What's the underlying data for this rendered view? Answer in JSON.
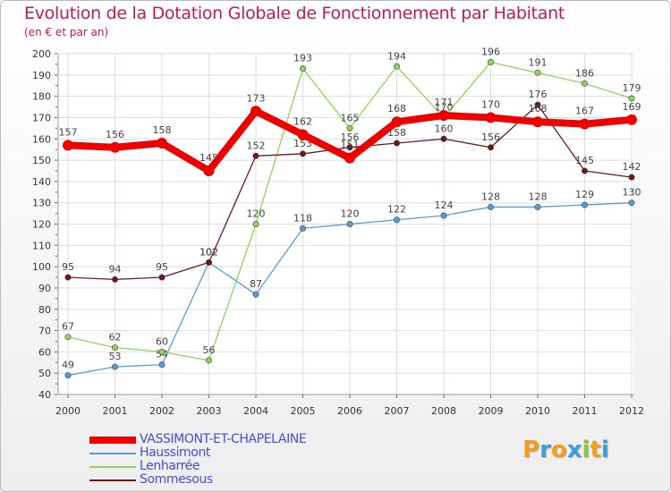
{
  "header": {
    "title": "Evolution de la Dotation Globale de Fonctionnement par Habitant",
    "subtitle": "(en € et par an)"
  },
  "chart_data": {
    "type": "line",
    "title": "Evolution de la Dotation Globale de Fonctionnement par Habitant",
    "ylabel": "(en € et par an)",
    "xlabel": "",
    "ylim": [
      40,
      200
    ],
    "yticks": [
      40,
      50,
      60,
      70,
      80,
      90,
      100,
      110,
      120,
      130,
      140,
      150,
      160,
      170,
      180,
      190,
      200
    ],
    "grid": true,
    "categories": [
      "2000",
      "2001",
      "2002",
      "2003",
      "2004",
      "2005",
      "2006",
      "2007",
      "2008",
      "2009",
      "2010",
      "2011",
      "2012"
    ],
    "series": [
      {
        "name": "VASSIMONT-ET-CHAPELAINE",
        "color": "#ee0000",
        "values": [
          157,
          156,
          158,
          145,
          173,
          162,
          151,
          168,
          171,
          170,
          168,
          167,
          169
        ]
      },
      {
        "name": "Haussimont",
        "color": "#5b9bd5",
        "values": [
          49,
          53,
          54,
          102,
          87,
          118,
          120,
          122,
          124,
          128,
          128,
          129,
          130
        ]
      },
      {
        "name": "Lenharrée",
        "color": "#8fd45a",
        "values": [
          67,
          62,
          60,
          56,
          120,
          193,
          165,
          194,
          170,
          196,
          191,
          186,
          179
        ]
      },
      {
        "name": "Sommesous",
        "color": "#6b1a1a",
        "values": [
          95,
          94,
          95,
          102,
          152,
          153,
          156,
          158,
          160,
          156,
          176,
          145,
          142
        ]
      }
    ],
    "legend_position": "bottom-left"
  },
  "logo": {
    "text": "Proxiti",
    "letters": [
      "P",
      "r",
      "o",
      "x",
      "i",
      "t",
      "i"
    ],
    "colors": [
      "#f0a020",
      "#3aa0d8",
      "#f0a020",
      "#3aa0d8",
      "#8cc63f",
      "#f0a020",
      "#3aa0d8"
    ]
  }
}
